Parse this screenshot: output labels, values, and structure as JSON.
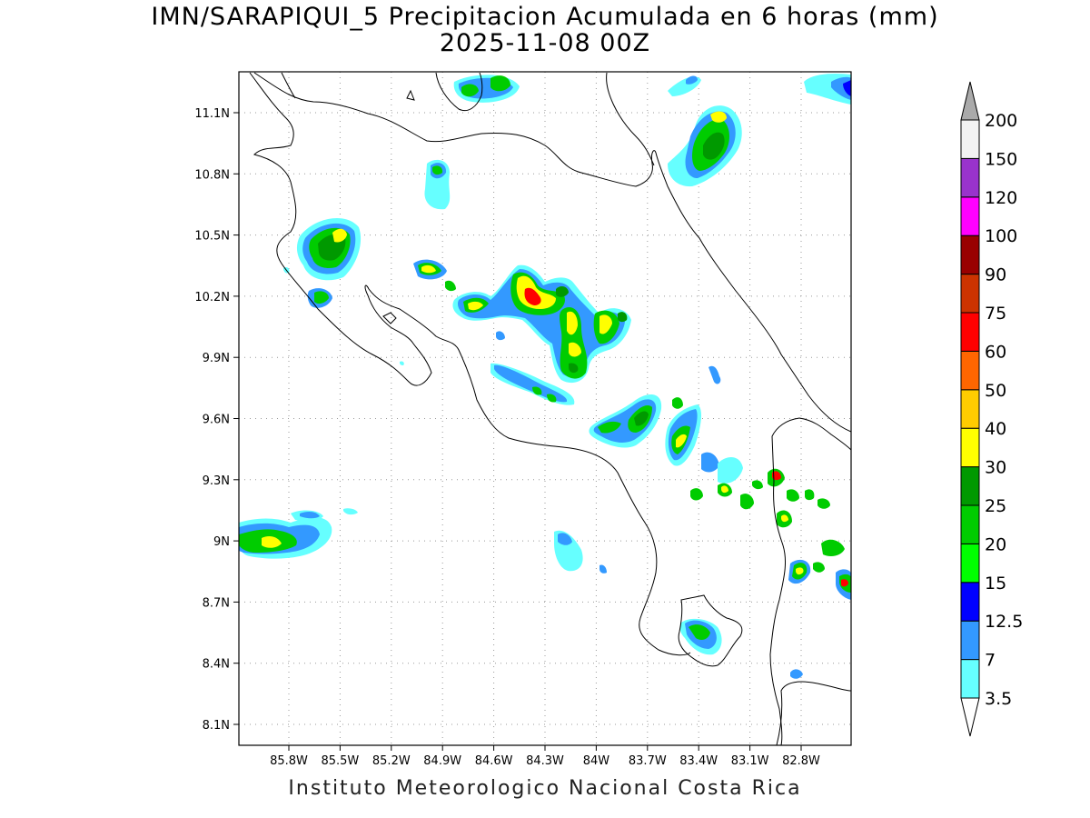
{
  "title": {
    "line1": "IMN/SARAPIQUI_5 Precipitacion Acumulada en 6 horas (mm)",
    "line2": "2025-11-08 00Z"
  },
  "credit": "Instituto Meteorologico Nacional Costa Rica",
  "map": {
    "lon_range": [
      -86.0,
      -83.0
    ],
    "lat_range": [
      8.0,
      11.3
    ],
    "lon_ticks": [
      -85.8,
      -85.5,
      -85.2,
      -84.9,
      -84.6,
      -84.3,
      -84.0,
      -83.7,
      -83.4,
      -83.1,
      -82.8
    ],
    "lon_labels": [
      "85.8W",
      "85.5W",
      "85.2W",
      "84.9W",
      "84.6W",
      "84.3W",
      "84W",
      "83.7W",
      "83.4W",
      "83.1W",
      "82.8W"
    ],
    "lat_ticks": [
      8.1,
      8.4,
      8.7,
      9.0,
      9.3,
      9.6,
      9.9,
      10.2,
      10.5,
      10.8,
      11.1
    ],
    "lat_labels": [
      "8.1N",
      "8.4N",
      "8.7N",
      "9N",
      "9.3N",
      "9.6N",
      "9.9N",
      "10.2N",
      "10.5N",
      "10.8N",
      "11.1N"
    ],
    "grid": "dotted"
  },
  "colorbar": {
    "labels": [
      "3.5",
      "7",
      "12.5",
      "15",
      "20",
      "25",
      "30",
      "40",
      "50",
      "60",
      "75",
      "90",
      "100",
      "120",
      "150",
      "200"
    ],
    "colors": [
      "#66ffff",
      "#3399ff",
      "#0000ff",
      "#00ff00",
      "#00cc00",
      "#009900",
      "#ffff00",
      "#ffcc00",
      "#ff6600",
      "#ff0000",
      "#cc3300",
      "#990000",
      "#ff00ff",
      "#9933cc",
      "#f2f2f2"
    ],
    "over_color": "#aaaaaa",
    "under_color": "#ffffff"
  }
}
